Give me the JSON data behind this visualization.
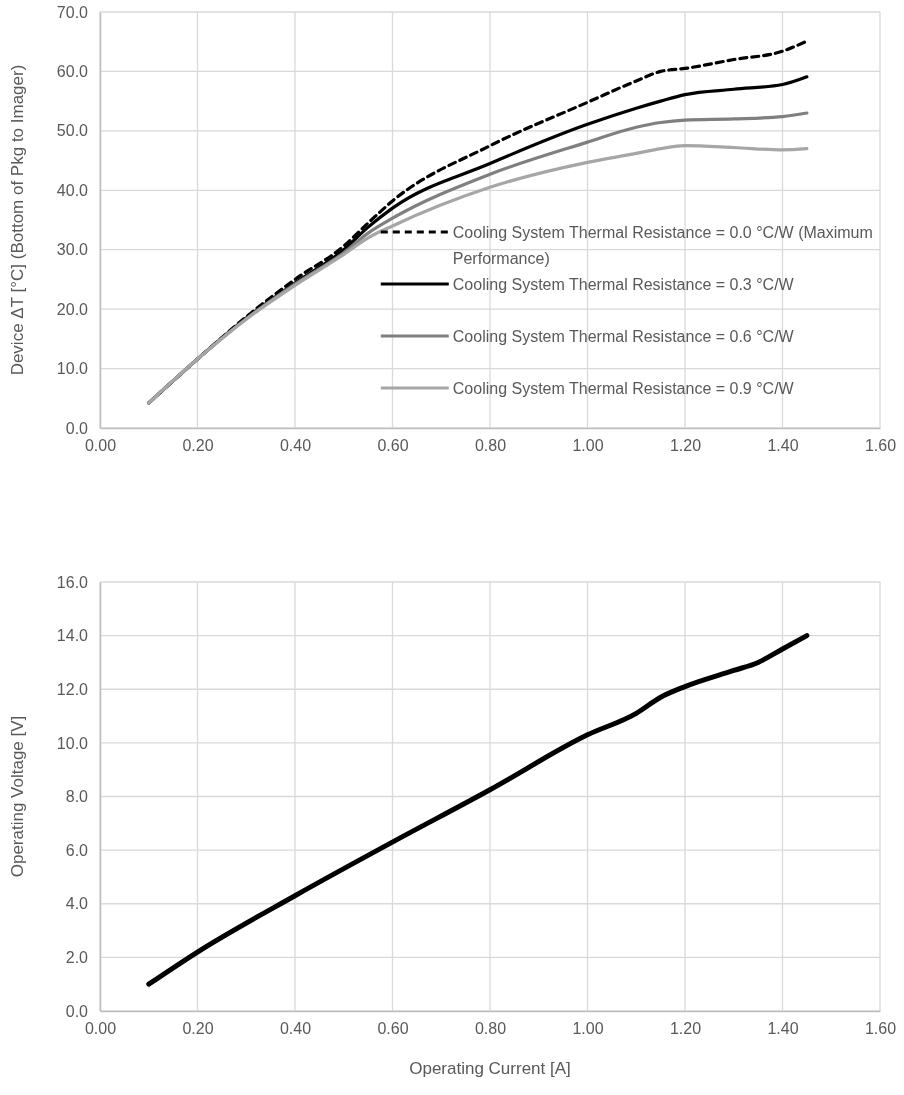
{
  "chart_data": [
    {
      "type": "line",
      "ylabel": "Device ΔT [°C] (Bottom of Pkg to Imager)",
      "x": [
        0.1,
        0.2,
        0.3,
        0.4,
        0.5,
        0.55,
        0.6,
        0.8,
        1.0,
        1.1,
        1.15,
        1.2,
        1.3,
        1.4,
        1.45
      ],
      "series": [
        {
          "name": "Cooling System Thermal Resistance = 0.0 °C/W (Maximum Performance)",
          "color": "#000000",
          "line_style": "dashed",
          "values": [
            4.2,
            11.6,
            18.7,
            25.0,
            30.6,
            34.5,
            38.2,
            47.5,
            54.8,
            58.4,
            60.0,
            60.5,
            62.0,
            63.4,
            65.1
          ]
        },
        {
          "name": "Cooling System Thermal Resistance = 0.3 °C/W",
          "color": "#000000",
          "values": [
            4.2,
            11.6,
            18.5,
            24.4,
            30.0,
            33.8,
            37.0,
            44.5,
            51.1,
            53.8,
            55.0,
            56.1,
            57.0,
            57.8,
            59.1
          ]
        },
        {
          "name": "Cooling System Thermal Resistance = 0.6 °C/W",
          "color": "#7f7f7f",
          "values": [
            4.2,
            11.6,
            18.4,
            24.2,
            29.5,
            32.8,
            35.3,
            42.7,
            48.1,
            50.6,
            51.4,
            51.8,
            52.0,
            52.4,
            53.0
          ]
        },
        {
          "name": "Cooling System Thermal Resistance = 0.9 °C/W",
          "color": "#a6a6a6",
          "values": [
            4.2,
            11.6,
            18.3,
            24.0,
            29.2,
            32.0,
            34.0,
            40.5,
            44.7,
            46.2,
            47.0,
            47.5,
            47.2,
            46.8,
            47.0
          ]
        }
      ],
      "xlim": [
        0,
        1.6
      ],
      "xticks": [
        {
          "value": 0,
          "label": "0.00"
        },
        {
          "value": 0.2,
          "label": "0.20"
        },
        {
          "value": 0.4,
          "label": "0.40"
        },
        {
          "value": 0.6,
          "label": "0.60"
        },
        {
          "value": 0.8,
          "label": "0.80"
        },
        {
          "value": 1.0,
          "label": "1.00"
        },
        {
          "value": 1.2,
          "label": "1.20"
        },
        {
          "value": 1.4,
          "label": "1.40"
        },
        {
          "value": 1.6,
          "label": "1.60"
        }
      ],
      "ylim": [
        0,
        70
      ],
      "yticks": [
        {
          "value": 0,
          "label": "0.0"
        },
        {
          "value": 10,
          "label": "10.0"
        },
        {
          "value": 20,
          "label": "20.0"
        },
        {
          "value": 30,
          "label": "30.0"
        },
        {
          "value": 40,
          "label": "40.0"
        },
        {
          "value": 50,
          "label": "50.0"
        },
        {
          "value": 60,
          "label": "60.0"
        },
        {
          "value": 70,
          "label": "70.0"
        }
      ],
      "grid": true,
      "legend": "bottom right"
    },
    {
      "type": "line",
      "xlabel": "Operating Current [A]",
      "ylabel": "Operating Voltage [V]",
      "x": [
        0.1,
        0.2,
        0.4,
        0.6,
        0.8,
        1.0,
        1.1,
        1.15,
        1.2,
        1.3,
        1.35,
        1.4,
        1.45
      ],
      "series": [
        {
          "color": "#000000",
          "values": [
            1.0,
            2.2,
            4.3,
            6.3,
            8.25,
            10.3,
            11.1,
            11.7,
            12.1,
            12.7,
            13.0,
            13.5,
            14.0
          ]
        }
      ],
      "xlim": [
        0,
        1.6
      ],
      "xticks": [
        {
          "value": 0,
          "label": "0.00"
        },
        {
          "value": 0.2,
          "label": "0.20"
        },
        {
          "value": 0.4,
          "label": "0.40"
        },
        {
          "value": 0.6,
          "label": "0.60"
        },
        {
          "value": 0.8,
          "label": "0.80"
        },
        {
          "value": 1.0,
          "label": "1.00"
        },
        {
          "value": 1.2,
          "label": "1.20"
        },
        {
          "value": 1.4,
          "label": "1.40"
        },
        {
          "value": 1.6,
          "label": "1.60"
        }
      ],
      "ylim": [
        0,
        16
      ],
      "yticks": [
        {
          "value": 0,
          "label": "0.0"
        },
        {
          "value": 2,
          "label": "2.0"
        },
        {
          "value": 4,
          "label": "4.0"
        },
        {
          "value": 6,
          "label": "6.0"
        },
        {
          "value": 8,
          "label": "8.0"
        },
        {
          "value": 10,
          "label": "10.0"
        },
        {
          "value": 12,
          "label": "12.0"
        },
        {
          "value": 14,
          "label": "14.0"
        },
        {
          "value": 16,
          "label": "16.0"
        }
      ],
      "grid": true
    }
  ]
}
